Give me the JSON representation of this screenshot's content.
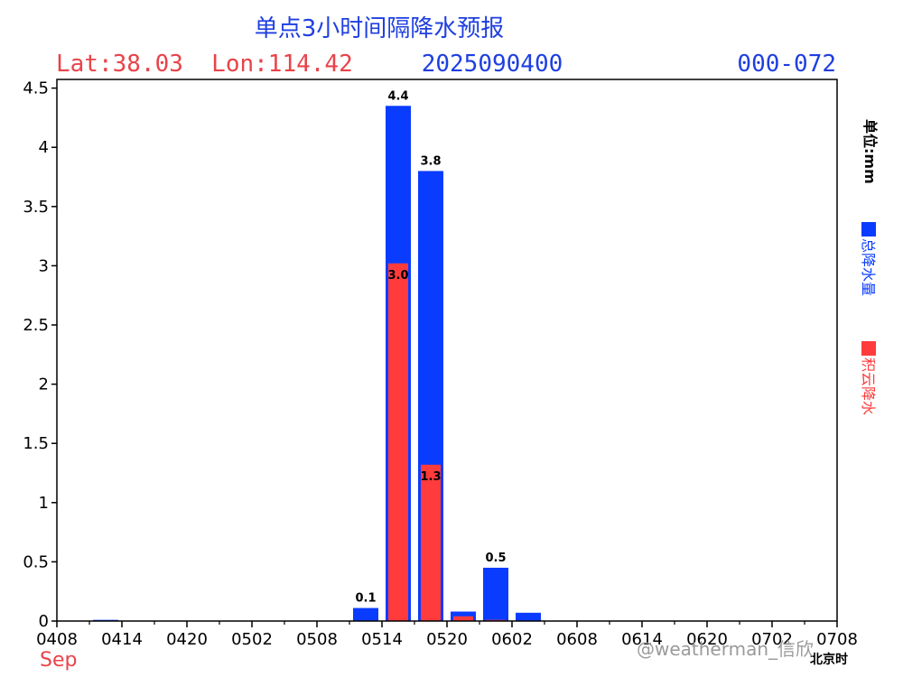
{
  "chart_data": {
    "type": "bar",
    "title": "单点3小时间隔降水预报",
    "location": "Lat:38.03  Lon:114.42",
    "init_time": "2025090400",
    "forecast_range": "000-072",
    "unit_label": "单位:mm",
    "month_label": "Sep",
    "xaxis_note": "北京时",
    "x_ticks": [
      "0408",
      "0414",
      "0420",
      "0502",
      "0508",
      "0514",
      "0520",
      "0602",
      "0608",
      "0614",
      "0620",
      "0702",
      "0708"
    ],
    "y_ticks": [
      "0",
      "0.5",
      "1",
      "1.5",
      "2",
      "2.5",
      "3",
      "3.5",
      "4",
      "4.5"
    ],
    "ylim": [
      0,
      4.6
    ],
    "grid": false,
    "legend_position": "right",
    "series": [
      {
        "name": "总降水量",
        "color": "#0a3cff",
        "values": [
          0,
          0.01,
          0,
          0,
          0,
          0,
          0,
          0,
          0,
          0.11,
          4.35,
          3.8,
          0.08,
          0.45,
          0.07,
          0,
          0,
          0,
          0,
          0,
          0,
          0,
          0,
          0
        ],
        "labels": [
          "",
          "",
          "",
          "",
          "",
          "",
          "",
          "",
          "",
          "0.1",
          "4.4",
          "3.8",
          "",
          "0.5",
          "",
          "",
          "",
          "",
          "",
          "",
          "",
          "",
          "",
          ""
        ]
      },
      {
        "name": "积云降水",
        "color": "#ff3b3b",
        "values": [
          0,
          0,
          0,
          0,
          0,
          0,
          0,
          0,
          0,
          0,
          3.02,
          1.32,
          0.04,
          0.01,
          0,
          0,
          0,
          0,
          0,
          0,
          0,
          0,
          0,
          0
        ],
        "labels": [
          "",
          "",
          "",
          "",
          "",
          "",
          "",
          "",
          "",
          "",
          "3.0",
          "1.3",
          "",
          "",
          "",
          "",
          "",
          "",
          "",
          "",
          "",
          "",
          "",
          ""
        ]
      }
    ]
  },
  "watermark": "@weatherman_信欣"
}
